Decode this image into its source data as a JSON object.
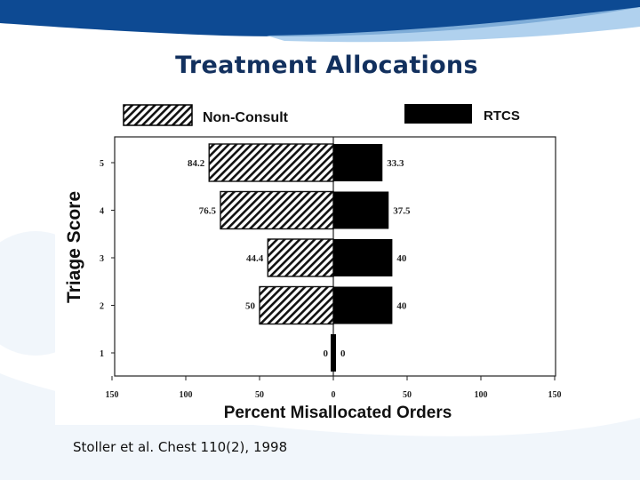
{
  "slide": {
    "title": "Treatment Allocations",
    "citation": "Stoller et al. Chest 110(2), 1998"
  },
  "colors": {
    "title": "#12305e",
    "wave_dark": "#0d4a93",
    "wave_light": "#9cc5ea",
    "bar": "#000000"
  },
  "chart_data": {
    "type": "bar",
    "orientation": "horizontal-diverging",
    "title": "",
    "xlabel": "Percent Misallocated Orders",
    "ylabel": "Triage Score",
    "categories": [
      "5",
      "4",
      "3",
      "2",
      "1"
    ],
    "series": [
      {
        "name": "Non-Consult",
        "pattern": "hatched",
        "direction": "left",
        "values": [
          84.2,
          76.5,
          44.4,
          50,
          0
        ],
        "labels": [
          "84.2",
          "76.5",
          "44.4",
          "50",
          "0"
        ]
      },
      {
        "name": "RTCS",
        "pattern": "solid",
        "direction": "right",
        "values": [
          33.3,
          37.5,
          40,
          40,
          0
        ],
        "labels": [
          "33.3",
          "37.5",
          "40",
          "40",
          "0"
        ]
      }
    ],
    "xlim": [
      -150,
      150
    ],
    "x_ticks": [
      {
        "value": -150,
        "label": "150"
      },
      {
        "value": -100,
        "label": "100"
      },
      {
        "value": -50,
        "label": "50"
      },
      {
        "value": 0,
        "label": "0"
      },
      {
        "value": 50,
        "label": "50"
      },
      {
        "value": 100,
        "label": "100"
      },
      {
        "value": 150,
        "label": "150"
      }
    ],
    "legend_position": "top",
    "grid": false
  }
}
